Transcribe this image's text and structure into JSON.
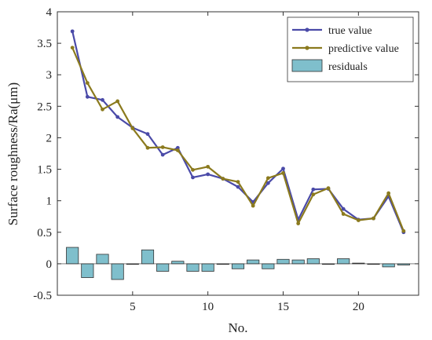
{
  "chart_data": {
    "type": "line",
    "xlabel": "No.",
    "ylabel": "Surface roughness/Ra(μm)",
    "xlim": [
      0,
      24
    ],
    "ylim": [
      -0.5,
      4
    ],
    "xticks": [
      5,
      10,
      15,
      20
    ],
    "yticks": [
      -0.5,
      0,
      0.5,
      1,
      1.5,
      2,
      2.5,
      3,
      3.5,
      4
    ],
    "grid": false,
    "legend_position": "top-right",
    "x": [
      1,
      2,
      3,
      4,
      5,
      6,
      7,
      8,
      9,
      10,
      11,
      12,
      13,
      14,
      15,
      16,
      17,
      18,
      19,
      20,
      21,
      22,
      23
    ],
    "series": [
      {
        "name": "true value",
        "kind": "line",
        "color": "#4a4aa8",
        "values": [
          3.69,
          2.65,
          2.6,
          2.33,
          2.16,
          2.06,
          1.73,
          1.84,
          1.37,
          1.42,
          1.35,
          1.22,
          0.98,
          1.28,
          1.51,
          0.7,
          1.18,
          1.19,
          0.87,
          0.7,
          0.72,
          1.07,
          0.5
        ]
      },
      {
        "name": "predictive value",
        "kind": "line",
        "color": "#8b7a1e",
        "values": [
          3.43,
          2.87,
          2.45,
          2.58,
          2.15,
          1.84,
          1.85,
          1.8,
          1.49,
          1.54,
          1.35,
          1.3,
          0.92,
          1.36,
          1.44,
          0.64,
          1.1,
          1.2,
          0.79,
          0.69,
          0.72,
          1.12,
          0.52
        ]
      },
      {
        "name": "residuals",
        "kind": "bar",
        "color": "#7fbfcc",
        "values": [
          0.26,
          -0.22,
          0.15,
          -0.25,
          0.0,
          0.22,
          -0.12,
          0.04,
          -0.12,
          -0.12,
          0.0,
          -0.08,
          0.06,
          -0.08,
          0.07,
          0.06,
          0.08,
          -0.01,
          0.08,
          0.01,
          -0.01,
          -0.05,
          -0.02
        ]
      }
    ]
  }
}
